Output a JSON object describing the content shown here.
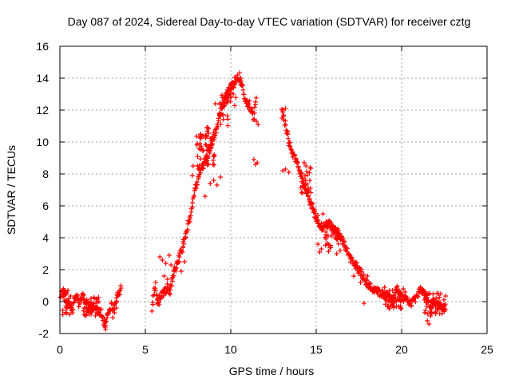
{
  "chart_data": {
    "type": "scatter",
    "title": "Day 087 of 2024, Sidereal Day-to-day VTEC variation (SDTVAR) for receiver cztg",
    "xlabel": "GPS time / hours",
    "ylabel": "SDTVAR / TECUs",
    "xlim": [
      0,
      25
    ],
    "ylim": [
      -2,
      16
    ],
    "x_ticks": [
      0,
      5,
      10,
      15,
      20,
      25
    ],
    "y_ticks": [
      -2,
      0,
      2,
      4,
      6,
      8,
      10,
      12,
      14,
      16
    ],
    "grid": true,
    "marker": "+",
    "color": "#ff0000",
    "series": [
      {
        "name": "cztg",
        "trace": [
          [
            0.05,
            0.3
          ],
          [
            0.15,
            0.8
          ],
          [
            0.3,
            0.5
          ],
          [
            0.45,
            0.0
          ],
          [
            0.6,
            -0.3
          ],
          [
            0.75,
            -0.5
          ],
          [
            0.9,
            0.2
          ],
          [
            1.0,
            0.5
          ],
          [
            1.1,
            -0.2
          ],
          [
            1.3,
            0.4
          ],
          [
            1.5,
            0.0
          ],
          [
            1.7,
            -0.3
          ],
          [
            1.9,
            -0.5
          ],
          [
            2.1,
            -0.4
          ],
          [
            2.3,
            -0.6
          ],
          [
            2.45,
            -0.7
          ],
          [
            2.55,
            -1.2
          ],
          [
            2.65,
            -1.5
          ],
          [
            2.75,
            -1.0
          ],
          [
            2.9,
            -0.6
          ],
          [
            3.0,
            -0.2
          ],
          [
            3.1,
            -0.5
          ],
          [
            3.2,
            -0.1
          ],
          [
            3.35,
            0.3
          ],
          [
            3.5,
            0.6
          ],
          [
            3.6,
            0.9
          ],
          [
            5.4,
            -0.5
          ],
          [
            5.5,
            0.5
          ],
          [
            5.6,
            1.2
          ],
          [
            5.7,
            0.0
          ],
          [
            5.9,
            0.3
          ],
          [
            6.1,
            0.6
          ],
          [
            6.3,
            0.9
          ],
          [
            6.45,
            0.5
          ],
          [
            6.6,
            1.5
          ],
          [
            6.8,
            2.2
          ],
          [
            7.0,
            2.8
          ],
          [
            7.2,
            3.5
          ],
          [
            7.4,
            4.3
          ],
          [
            7.6,
            5.2
          ],
          [
            7.8,
            6.3
          ],
          [
            8.0,
            7.4
          ],
          [
            8.2,
            8.2
          ],
          [
            8.45,
            8.7
          ],
          [
            8.7,
            9.2
          ],
          [
            8.9,
            9.9
          ],
          [
            9.1,
            10.6
          ],
          [
            9.3,
            11.4
          ],
          [
            9.5,
            12.2
          ],
          [
            9.7,
            12.8
          ],
          [
            9.9,
            13.2
          ],
          [
            10.1,
            13.5
          ],
          [
            10.3,
            13.9
          ],
          [
            10.5,
            14.1
          ],
          [
            10.6,
            13.8
          ],
          [
            10.75,
            13.2
          ],
          [
            10.9,
            12.5
          ],
          [
            11.05,
            12.4
          ],
          [
            11.2,
            12.0
          ],
          [
            11.35,
            11.5
          ],
          [
            11.5,
            12.8
          ],
          [
            13.0,
            12.0
          ],
          [
            13.2,
            11.0
          ],
          [
            13.4,
            10.0
          ],
          [
            13.6,
            9.3
          ],
          [
            13.8,
            8.8
          ],
          [
            14.0,
            8.4
          ],
          [
            14.2,
            7.6
          ],
          [
            14.5,
            6.8
          ],
          [
            14.8,
            5.8
          ],
          [
            15.1,
            5.0
          ],
          [
            15.4,
            4.6
          ],
          [
            15.7,
            4.9
          ],
          [
            16.0,
            4.6
          ],
          [
            16.3,
            4.2
          ],
          [
            16.6,
            3.7
          ],
          [
            16.8,
            3.2
          ],
          [
            17.05,
            2.6
          ],
          [
            17.5,
            2.0
          ],
          [
            17.8,
            1.4
          ],
          [
            18.0,
            1.0
          ],
          [
            18.3,
            0.8
          ],
          [
            18.9,
            0.5
          ],
          [
            19.2,
            0.3
          ],
          [
            19.5,
            0.0
          ],
          [
            19.7,
            0.8
          ],
          [
            20.0,
            0.3
          ],
          [
            20.3,
            0.1
          ],
          [
            20.6,
            -0.1
          ],
          [
            20.9,
            0.4
          ],
          [
            21.1,
            0.9
          ],
          [
            21.3,
            0.5
          ],
          [
            21.5,
            0.0
          ],
          [
            21.7,
            -0.2
          ],
          [
            21.9,
            0.0
          ],
          [
            22.2,
            -0.3
          ],
          [
            22.6,
            -0.3
          ]
        ],
        "clusters": [
          [
            7.95,
            8.8,
            9.5,
            1.2
          ],
          [
            8.4,
            9.1,
            9.8,
            1.3
          ],
          [
            9.3,
            9.9,
            12.0,
            1.0
          ],
          [
            9.7,
            10.3,
            13.1,
            0.9
          ],
          [
            15.5,
            16.3,
            3.9,
            0.8
          ],
          [
            14.1,
            14.7,
            7.6,
            0.9
          ],
          [
            0.1,
            0.7,
            0.0,
            0.9
          ],
          [
            1.3,
            2.3,
            -0.3,
            0.6
          ],
          [
            19.0,
            20.0,
            0.1,
            0.6
          ],
          [
            21.3,
            22.6,
            -0.1,
            0.7
          ]
        ],
        "points": [
          [
            5.7,
            0.1
          ],
          [
            5.8,
            -0.2
          ],
          [
            5.85,
            2.8
          ],
          [
            6.0,
            2.6
          ],
          [
            6.2,
            2.4
          ],
          [
            6.4,
            2.9
          ],
          [
            6.5,
            2.3
          ],
          [
            6.1,
            1.6
          ],
          [
            6.3,
            1.4
          ],
          [
            7.1,
            1.9
          ],
          [
            7.3,
            2.5
          ],
          [
            8.5,
            6.6
          ],
          [
            8.8,
            7.4
          ],
          [
            9.2,
            7.3
          ],
          [
            9.4,
            7.8
          ],
          [
            9.0,
            7.6
          ],
          [
            11.35,
            8.9
          ],
          [
            11.45,
            8.6
          ],
          [
            11.55,
            8.7
          ],
          [
            11.5,
            11.3
          ],
          [
            11.6,
            11.1
          ],
          [
            13.05,
            8.2
          ],
          [
            13.2,
            8.3
          ],
          [
            13.4,
            8.1
          ],
          [
            14.3,
            8.7
          ],
          [
            14.4,
            8.5
          ],
          [
            15.1,
            3.6
          ],
          [
            15.2,
            3.1
          ],
          [
            15.3,
            3.3
          ],
          [
            15.1,
            5.4
          ],
          [
            15.4,
            5.5
          ],
          [
            15.6,
            5.0
          ],
          [
            16.2,
            3.0
          ],
          [
            16.4,
            3.2
          ],
          [
            17.2,
            1.6
          ],
          [
            17.6,
            1.2
          ],
          [
            18.0,
            1.6
          ],
          [
            17.8,
            -0.1
          ],
          [
            19.0,
            0.9
          ],
          [
            19.3,
            0.7
          ],
          [
            19.7,
            -0.3
          ],
          [
            20.1,
            0.8
          ],
          [
            20.2,
            0.6
          ],
          [
            21.5,
            -1.2
          ],
          [
            21.6,
            -1.4
          ],
          [
            21.7,
            -0.9
          ],
          [
            3.1,
            -1.0
          ],
          [
            3.2,
            -0.7
          ],
          [
            3.3,
            -0.4
          ],
          [
            2.65,
            -1.6
          ],
          [
            2.6,
            -1.1
          ],
          [
            7.75,
            7.9
          ],
          [
            7.8,
            8.5
          ],
          [
            8.05,
            8.5
          ],
          [
            8.3,
            9.6
          ],
          [
            8.6,
            10.9
          ],
          [
            9.1,
            12.4
          ],
          [
            9.5,
            12.8
          ],
          [
            10.4,
            14.2
          ],
          [
            10.55,
            14.0
          ],
          [
            13.2,
            12.1
          ],
          [
            13.0,
            11.5
          ]
        ]
      }
    ]
  }
}
